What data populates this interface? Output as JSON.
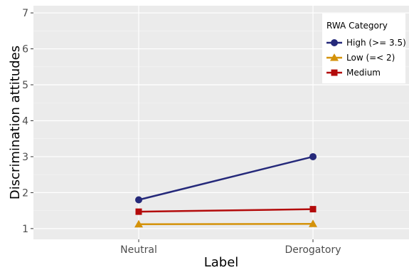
{
  "chart_data": {
    "type": "line",
    "xlabel": "Label",
    "ylabel": "Discrimination attitudes",
    "categories": [
      "Neutral",
      "Derogatory"
    ],
    "ylim": [
      0.7,
      7.2
    ],
    "yticks": [
      1,
      2,
      3,
      4,
      5,
      6,
      7
    ],
    "grid": true,
    "legend": {
      "title": "RWA Category",
      "position": "top-right"
    },
    "series": [
      {
        "name": "High (>= 3.5)",
        "color": "#25297a",
        "marker": "circle",
        "values": [
          1.8,
          3.0
        ]
      },
      {
        "name": "Low (=< 2)",
        "color": "#d4920a",
        "marker": "triangle",
        "values": [
          1.12,
          1.13
        ]
      },
      {
        "name": "Medium",
        "color": "#b30b0b",
        "marker": "square",
        "values": [
          1.47,
          1.54
        ]
      }
    ]
  }
}
